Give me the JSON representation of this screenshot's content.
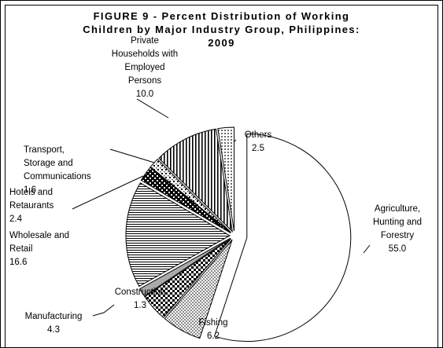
{
  "chart_data": {
    "type": "pie",
    "title": "FIGURE 9 - Percent Distribution of Working\nChildren by Major Industry Group, Philippines:\n2009",
    "categories": [
      "Agriculture,\nHunting and\nForestry",
      "Fishing",
      "Manufacturing",
      "Construction",
      "Wholesale and\nRetail",
      "Hotels and\nRetaurants",
      "Transport,\nStorage and\nCommunications",
      "Private\nHouseholds with\nEmployed\nPersons",
      "Others"
    ],
    "values": [
      55.0,
      6.2,
      4.3,
      1.3,
      16.6,
      2.4,
      1.6,
      10.0,
      2.5
    ],
    "value_labels": [
      "55.0",
      "6.2",
      "4.3",
      "1.3",
      "16.6",
      "2.4",
      "1.6",
      "10.0",
      "2.5"
    ],
    "fills": [
      "white",
      "fine-dots",
      "checker",
      "gray",
      "hlines",
      "bold-checker",
      "dot-check",
      "vlines",
      "dots"
    ]
  }
}
